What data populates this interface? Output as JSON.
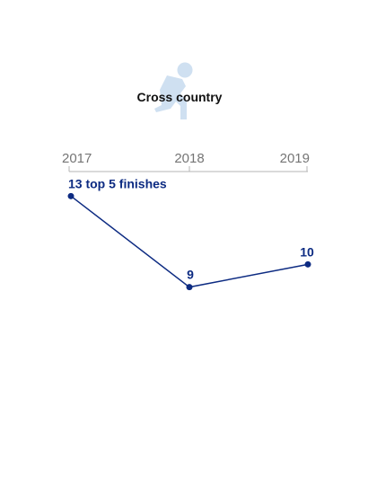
{
  "colors": {
    "series": "#0d2b82",
    "axis": "#b5b5b5",
    "tick_text": "#757575",
    "icon": "#cfe0f1"
  },
  "icon": "running-person-icon",
  "chart_data": {
    "type": "line",
    "title": "Cross country",
    "xlabel": "",
    "ylabel": "",
    "categories": [
      "2017",
      "2018",
      "2019"
    ],
    "values": [
      13,
      9,
      10
    ],
    "data_labels": [
      "13 top 5 finishes",
      "9",
      "10"
    ],
    "ylim": [
      8,
      14
    ],
    "grid": false,
    "x_axis_position": "top",
    "legend": "none"
  }
}
